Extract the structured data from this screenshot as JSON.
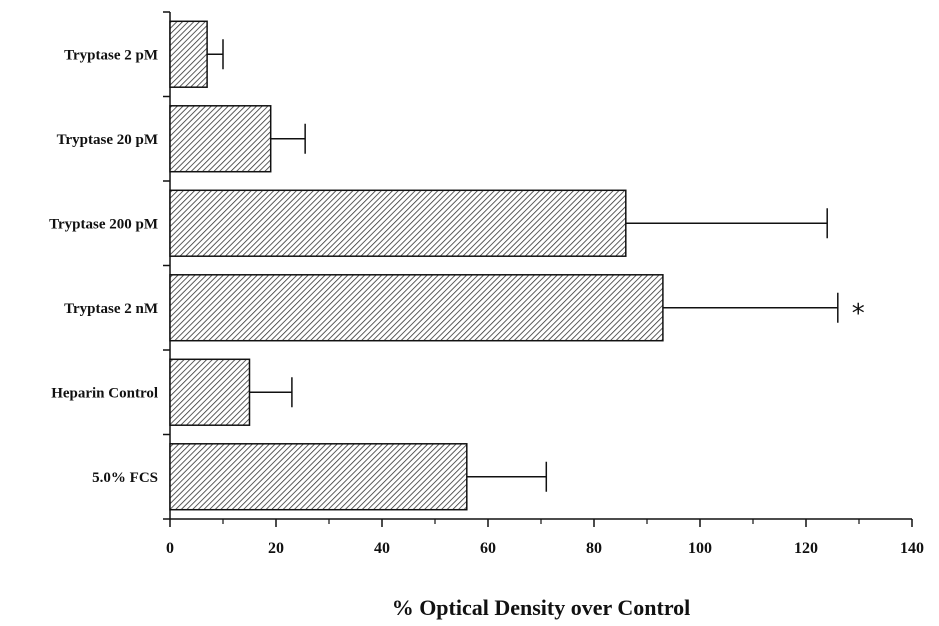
{
  "chart_data": {
    "type": "bar",
    "orientation": "horizontal",
    "categories": [
      "Tryptase 2 pM",
      "Tryptase 20 pM",
      "Tryptase 200 pM",
      "Tryptase 2  nM",
      "Heparin Control",
      "5.0% FCS"
    ],
    "values": [
      7,
      19,
      86,
      93,
      15,
      56
    ],
    "error_upper": [
      10,
      25.5,
      124,
      126,
      23,
      71
    ],
    "xlabel": "% Optical Density over Control",
    "ylabel": "",
    "xlim": [
      0,
      140
    ],
    "xticks": [
      0,
      20,
      40,
      60,
      80,
      100,
      120,
      140
    ],
    "xtick_labels": [
      "0",
      "20",
      "40",
      "60",
      "80",
      "100",
      "120",
      "140"
    ],
    "annotations": [
      {
        "category": "Tryptase 2  nM",
        "text": "*"
      }
    ],
    "grid": false,
    "legend": "none",
    "bar_fill": "diagonal hatch",
    "colors": {
      "bar_edge": "#111111",
      "hatch": "#333333",
      "axis": "#111111"
    }
  }
}
